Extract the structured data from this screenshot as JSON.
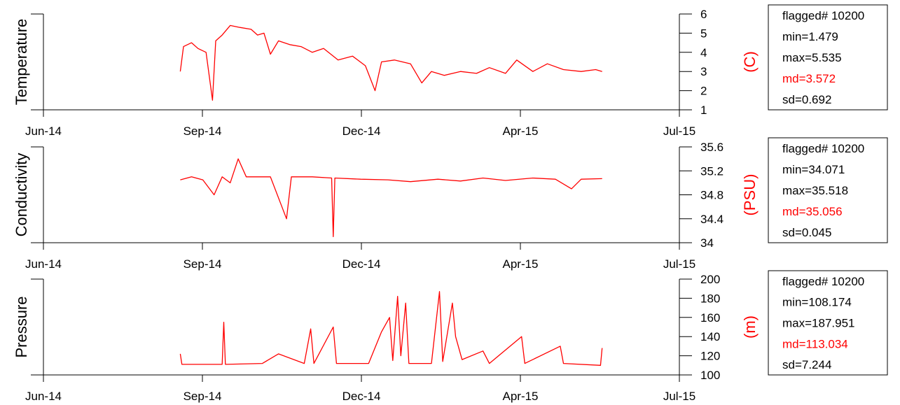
{
  "colors": {
    "series": "#ff0000",
    "axis": "#000000",
    "md_text": "#ff0000"
  },
  "x_ticks": [
    "Jun-14",
    "Sep-14",
    "Dec-14",
    "Apr-15",
    "Jul-15"
  ],
  "chart_data": [
    {
      "type": "line",
      "ylabel": "Temperature",
      "unit_label": "(C)",
      "ylim": [
        1,
        6
      ],
      "yticks": [
        1,
        2,
        3,
        4,
        5,
        6
      ],
      "x_axis_ticks": [
        "Jun-14",
        "Sep-14",
        "Dec-14",
        "Apr-15",
        "Jul-15"
      ],
      "series": [
        {
          "values": [
            [
              "2014-08-25",
              3.0
            ],
            [
              "2014-08-27",
              4.3
            ],
            [
              "2014-09-01",
              4.5
            ],
            [
              "2014-09-05",
              4.2
            ],
            [
              "2014-09-10",
              4.0
            ],
            [
              "2014-09-14",
              1.5
            ],
            [
              "2014-09-16",
              4.6
            ],
            [
              "2014-09-20",
              4.9
            ],
            [
              "2014-09-25",
              5.4
            ],
            [
              "2014-10-01",
              5.3
            ],
            [
              "2014-10-08",
              5.2
            ],
            [
              "2014-10-12",
              4.9
            ],
            [
              "2014-10-16",
              5.0
            ],
            [
              "2014-10-20",
              3.9
            ],
            [
              "2014-10-25",
              4.6
            ],
            [
              "2014-11-01",
              4.4
            ],
            [
              "2014-11-08",
              4.3
            ],
            [
              "2014-11-15",
              4.0
            ],
            [
              "2014-11-22",
              4.2
            ],
            [
              "2014-12-01",
              3.6
            ],
            [
              "2014-12-10",
              3.8
            ],
            [
              "2014-12-18",
              3.3
            ],
            [
              "2014-12-24",
              2.0
            ],
            [
              "2014-12-28",
              3.5
            ],
            [
              "2015-01-05",
              3.6
            ],
            [
              "2015-01-15",
              3.4
            ],
            [
              "2015-01-22",
              2.4
            ],
            [
              "2015-01-28",
              3.0
            ],
            [
              "2015-02-05",
              2.8
            ],
            [
              "2015-02-15",
              3.0
            ],
            [
              "2015-02-25",
              2.9
            ],
            [
              "2015-03-05",
              3.2
            ],
            [
              "2015-03-15",
              2.9
            ],
            [
              "2015-03-22",
              3.6
            ],
            [
              "2015-04-01",
              3.0
            ],
            [
              "2015-04-10",
              3.4
            ],
            [
              "2015-04-20",
              3.1
            ],
            [
              "2015-05-01",
              3.0
            ],
            [
              "2015-05-10",
              3.1
            ],
            [
              "2015-05-14",
              3.0
            ]
          ]
        }
      ],
      "stats": {
        "flagged": "flagged# 10200",
        "min": "min=1.479",
        "max": "max=5.535",
        "md": "md=3.572",
        "sd": "sd=0.692"
      }
    },
    {
      "type": "line",
      "ylabel": "Conductivity",
      "unit_label": "(PSU)",
      "ylim": [
        34,
        35.6
      ],
      "yticks": [
        34,
        34.4,
        34.8,
        35.2,
        35.6
      ],
      "x_axis_ticks": [
        "Jun-14",
        "Sep-14",
        "Dec-14",
        "Apr-15",
        "Jul-15"
      ],
      "series": [
        {
          "values": [
            [
              "2014-08-25",
              35.05
            ],
            [
              "2014-09-01",
              35.1
            ],
            [
              "2014-09-08",
              35.05
            ],
            [
              "2014-09-15",
              34.8
            ],
            [
              "2014-09-20",
              35.1
            ],
            [
              "2014-09-25",
              35.0
            ],
            [
              "2014-09-30",
              35.4
            ],
            [
              "2014-10-05",
              35.1
            ],
            [
              "2014-10-20",
              35.1
            ],
            [
              "2014-10-30",
              34.4
            ],
            [
              "2014-11-02",
              35.1
            ],
            [
              "2014-11-15",
              35.1
            ],
            [
              "2014-11-27",
              35.08
            ],
            [
              "2014-11-28",
              34.1
            ],
            [
              "2014-11-29",
              35.08
            ],
            [
              "2014-12-15",
              35.06
            ],
            [
              "2015-01-01",
              35.05
            ],
            [
              "2015-01-15",
              35.02
            ],
            [
              "2015-02-01",
              35.06
            ],
            [
              "2015-02-15",
              35.03
            ],
            [
              "2015-03-01",
              35.08
            ],
            [
              "2015-03-15",
              35.04
            ],
            [
              "2015-04-01",
              35.08
            ],
            [
              "2015-04-15",
              35.06
            ],
            [
              "2015-04-25",
              34.9
            ],
            [
              "2015-05-01",
              35.06
            ],
            [
              "2015-05-14",
              35.07
            ]
          ]
        }
      ],
      "stats": {
        "flagged": "flagged# 10200",
        "min": "min=34.071",
        "max": "max=35.518",
        "md": "md=35.056",
        "sd": "sd=0.045"
      }
    },
    {
      "type": "line",
      "ylabel": "Pressure",
      "unit_label": "(m)",
      "ylim": [
        100,
        200
      ],
      "yticks": [
        100,
        120,
        140,
        160,
        180,
        200
      ],
      "x_axis_ticks": [
        "Jun-14",
        "Sep-14",
        "Dec-14",
        "Apr-15",
        "Jul-15"
      ],
      "series": [
        {
          "values": [
            [
              "2014-08-25",
              122
            ],
            [
              "2014-08-26",
              111
            ],
            [
              "2014-09-20",
              111
            ],
            [
              "2014-09-21",
              155
            ],
            [
              "2014-09-22",
              111
            ],
            [
              "2014-10-15",
              112
            ],
            [
              "2014-10-25",
              122
            ],
            [
              "2014-11-10",
              112
            ],
            [
              "2014-11-14",
              148
            ],
            [
              "2014-11-16",
              112
            ],
            [
              "2014-11-28",
              150
            ],
            [
              "2014-11-30",
              112
            ],
            [
              "2014-12-20",
              112
            ],
            [
              "2014-12-28",
              145
            ],
            [
              "2015-01-02",
              160
            ],
            [
              "2015-01-04",
              115
            ],
            [
              "2015-01-07",
              182
            ],
            [
              "2015-01-09",
              120
            ],
            [
              "2015-01-12",
              175
            ],
            [
              "2015-01-14",
              112
            ],
            [
              "2015-01-28",
              112
            ],
            [
              "2015-02-02",
              187
            ],
            [
              "2015-02-04",
              114
            ],
            [
              "2015-02-10",
              175
            ],
            [
              "2015-02-12",
              140
            ],
            [
              "2015-02-16",
              116
            ],
            [
              "2015-03-01",
              125
            ],
            [
              "2015-03-05",
              112
            ],
            [
              "2015-03-25",
              140
            ],
            [
              "2015-03-27",
              112
            ],
            [
              "2015-04-18",
              130
            ],
            [
              "2015-04-20",
              112
            ],
            [
              "2015-05-13",
              110
            ],
            [
              "2015-05-14",
              128
            ]
          ]
        }
      ],
      "stats": {
        "flagged": "flagged# 10200",
        "min": "min=108.174",
        "max": "max=187.951",
        "md": "md=113.034",
        "sd": "sd=7.244"
      }
    }
  ]
}
